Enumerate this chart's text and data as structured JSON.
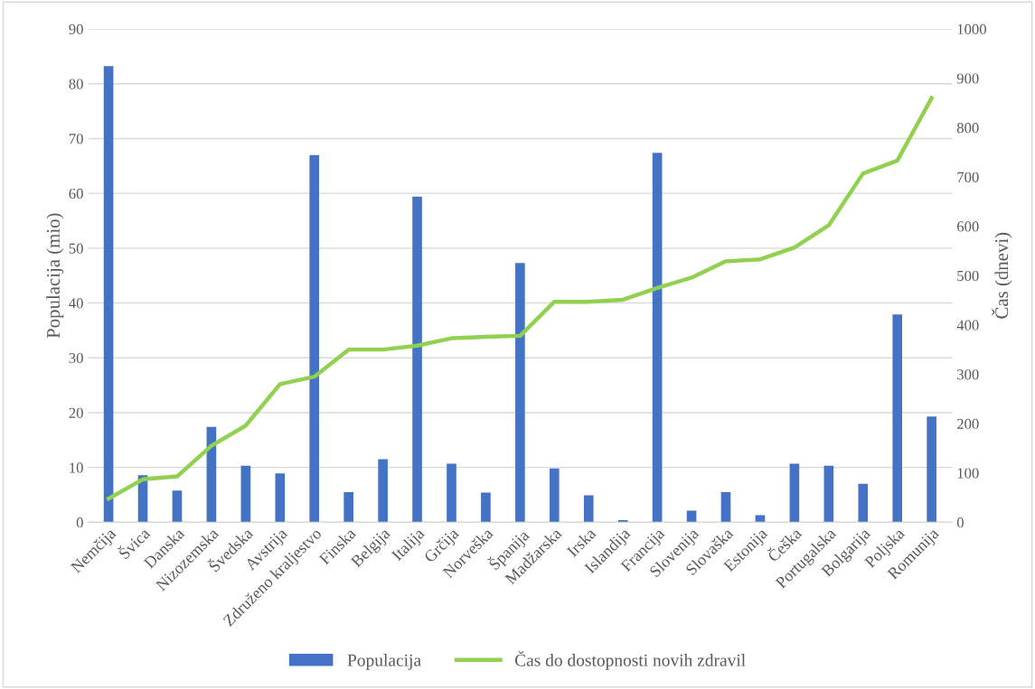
{
  "chart_data": {
    "type": "bar",
    "ylabel": "Populacija (mio)",
    "y2label": "Čas (dnevi)",
    "categories": [
      "Nemčija",
      "Švica",
      "Danska",
      "Nizozemska",
      "Švedska",
      "Avstrija",
      "Združeno kraljestvo",
      "Finska",
      "Belgija",
      "Italija",
      "Grčija",
      "Norveška",
      "Španija",
      "Madžarska",
      "Irska",
      "Islandija",
      "Francija",
      "Slovenija",
      "Slovaška",
      "Estonija",
      "Češka",
      "Portugalska",
      "Bolgarija",
      "Poljska",
      "Romunija"
    ],
    "series": [
      {
        "name": "Populacija",
        "color": "#4472c4",
        "values": [
          83.2,
          8.6,
          5.8,
          17.4,
          10.3,
          8.9,
          67.0,
          5.5,
          11.5,
          59.4,
          10.7,
          5.4,
          47.3,
          9.8,
          4.9,
          0.4,
          67.4,
          2.1,
          5.5,
          1.3,
          10.7,
          10.3,
          7.0,
          37.9,
          19.3
        ]
      },
      {
        "name": "Čas do dostopnosti novih zdravil",
        "type": "line",
        "axis": "y2",
        "color": "#92d050",
        "values": [
          48,
          87,
          93,
          155,
          196,
          280,
          295,
          350,
          350,
          358,
          373,
          376,
          378,
          447,
          447,
          451,
          475,
          496,
          529,
          533,
          557,
          602,
          707,
          733,
          860
        ]
      }
    ],
    "ylim": [
      0,
      90
    ],
    "yticks": [
      0,
      10,
      20,
      30,
      40,
      50,
      60,
      70,
      80,
      90
    ],
    "y2lim": [
      0,
      1000
    ],
    "y2ticks": [
      0,
      100,
      200,
      300,
      400,
      500,
      600,
      700,
      800,
      900,
      1000
    ],
    "grid": "y",
    "legend": "bottom",
    "marker": "none",
    "line_style": "solid"
  }
}
